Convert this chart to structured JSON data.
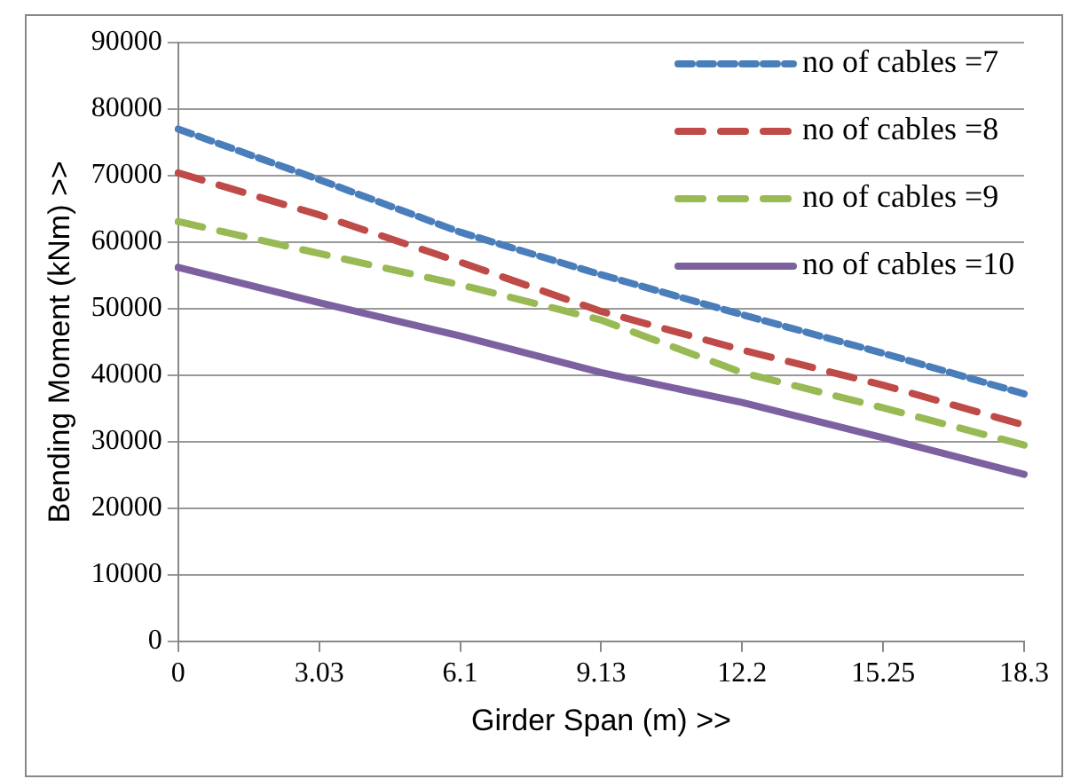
{
  "chart_data": {
    "type": "line",
    "xlabel": "Girder Span (m) >>",
    "ylabel": "Bending Moment (kNm) >>",
    "categories": [
      "0",
      "3.03",
      "6.1",
      "9.13",
      "12.2",
      "15.25",
      "18.3"
    ],
    "series": [
      {
        "name": "no of cables =7",
        "color": "#4a7ebb",
        "line_style": "dotted",
        "values": [
          77000,
          69400,
          61500,
          55100,
          49100,
          43300,
          37200
        ]
      },
      {
        "name": "no of cables =8",
        "color": "#be4b48",
        "line_style": "dashed",
        "values": [
          70400,
          64100,
          57000,
          49600,
          43800,
          38500,
          32500
        ]
      },
      {
        "name": "no of cables =9",
        "color": "#98b954",
        "line_style": "dashed",
        "values": [
          63100,
          58300,
          53600,
          48300,
          40400,
          35100,
          29500
        ]
      },
      {
        "name": "no of cables =10",
        "color": "#7d60a0",
        "line_style": "solid",
        "values": [
          56200,
          50900,
          45900,
          40400,
          35900,
          30600,
          25100
        ]
      }
    ],
    "ylim": [
      0,
      90000
    ],
    "yticks": [
      0,
      10000,
      20000,
      30000,
      40000,
      50000,
      60000,
      70000,
      80000,
      90000
    ],
    "grid": "y",
    "legend": "top right",
    "marker": "none"
  }
}
